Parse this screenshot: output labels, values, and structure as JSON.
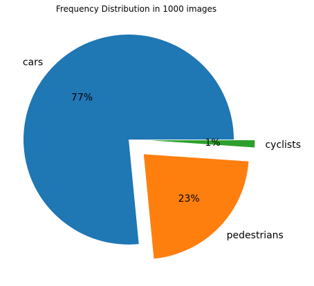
{
  "chart_data": {
    "type": "pie",
    "title": "Frequency Distribution in 1000 images",
    "categories": [
      "cars",
      "pedestrians",
      "cyclists"
    ],
    "values": [
      77,
      22.5,
      1.1
    ],
    "percent_labels": [
      "77%",
      "23%",
      "1%"
    ],
    "colors": [
      "#1f77b4",
      "#ff7f0e",
      "#2ca02c"
    ],
    "exploded": [
      false,
      true,
      true
    ],
    "legend": "none"
  }
}
